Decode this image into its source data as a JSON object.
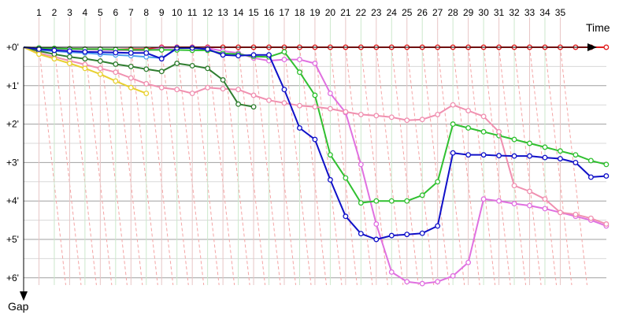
{
  "chart_data": {
    "type": "line",
    "x_axis_label": "Time",
    "y_axis_label": "Gap",
    "x_ticks": [
      "1",
      "2",
      "3",
      "4",
      "5",
      "6",
      "7",
      "8",
      "9",
      "10",
      "11",
      "12",
      "13",
      "14",
      "15",
      "16",
      "17",
      "18",
      "19",
      "20",
      "21",
      "22",
      "23",
      "24",
      "25",
      "26",
      "27",
      "28",
      "29",
      "30",
      "31",
      "32",
      "33",
      "34",
      "35"
    ],
    "y_ticks": [
      "+0'",
      "+1'",
      "+2'",
      "+3'",
      "+4'",
      "+5'",
      "+6'"
    ],
    "y_range_minutes": [
      0,
      6.4
    ],
    "x_range_laps": [
      0,
      38
    ],
    "grid": "on",
    "lap_line_colors": [
      "#e8c6c6",
      "#cce8cc"
    ],
    "series": [
      {
        "color": "#e02020",
        "x": [
          0,
          1,
          2,
          3,
          4,
          5,
          6,
          7,
          8,
          9,
          10,
          11,
          12,
          13,
          14,
          15,
          16,
          17,
          18,
          19,
          20,
          21,
          22,
          23,
          24,
          25,
          26,
          27,
          28,
          29,
          30,
          31,
          32,
          33,
          34,
          35,
          36,
          37,
          38
        ],
        "y": [
          0,
          0.02,
          0.04,
          0.04,
          0.05,
          0.05,
          0.06,
          0.05,
          0.05,
          0,
          0,
          0,
          0,
          0,
          0,
          0,
          0,
          0,
          0,
          0,
          0,
          0,
          0,
          0,
          0,
          0,
          0,
          0,
          0,
          0,
          0,
          0,
          0,
          0,
          0,
          0,
          0,
          0,
          0
        ]
      },
      {
        "color": "#e070e0",
        "x": [
          0,
          1,
          2,
          3,
          4,
          5,
          6,
          7,
          8,
          9,
          10,
          11,
          12,
          13,
          14,
          15,
          16,
          17,
          18,
          19,
          20,
          21,
          22,
          23,
          24,
          25,
          26,
          27,
          28,
          29,
          30,
          31,
          32,
          33,
          34,
          35,
          36,
          37,
          38
        ],
        "y": [
          0,
          0.02,
          0.04,
          0.05,
          0.06,
          0.07,
          0.08,
          0.08,
          0.09,
          0.02,
          0.01,
          0.01,
          0.02,
          0.1,
          0.15,
          0.28,
          0.35,
          0.32,
          0.32,
          0.42,
          1.2,
          1.7,
          3.05,
          4.6,
          5.85,
          6.1,
          6.15,
          6.1,
          5.95,
          5.6,
          3.95,
          4.0,
          4.07,
          4.12,
          4.2,
          4.3,
          4.4,
          4.5,
          4.65
        ]
      },
      {
        "color": "#50a0f0",
        "x": [
          0,
          1,
          2,
          3,
          4,
          5,
          6,
          7,
          8,
          9,
          10
        ],
        "y": [
          0,
          0.08,
          0.1,
          0.13,
          0.15,
          0.18,
          0.2,
          0.22,
          0.25,
          0.28,
          0.04
        ]
      },
      {
        "color": "#30c030",
        "x": [
          0,
          1,
          2,
          3,
          4,
          5,
          6,
          7,
          8,
          9,
          10,
          11,
          12,
          13,
          14,
          15,
          16,
          17,
          18,
          19,
          20,
          21,
          22,
          23,
          24,
          25,
          26,
          27,
          28,
          29,
          30,
          31,
          32,
          33,
          34,
          35,
          36,
          37,
          38
        ],
        "y": [
          0,
          0.02,
          0.03,
          0.04,
          0.05,
          0.05,
          0.06,
          0.07,
          0.07,
          0.07,
          0.07,
          0.08,
          0.08,
          0.16,
          0.18,
          0.24,
          0.25,
          0.12,
          0.65,
          1.25,
          2.8,
          3.4,
          4.05,
          4.0,
          4.0,
          4.0,
          3.85,
          3.5,
          2.0,
          2.1,
          2.2,
          2.3,
          2.4,
          2.5,
          2.6,
          2.7,
          2.8,
          2.95,
          3.05
        ]
      },
      {
        "color": "#f090b0",
        "x": [
          0,
          1,
          2,
          3,
          4,
          5,
          6,
          7,
          8,
          9,
          10,
          11,
          12,
          13,
          14,
          15,
          16,
          17,
          18,
          19,
          20,
          21,
          22,
          23,
          24,
          25,
          26,
          27,
          28,
          29,
          30,
          31,
          32,
          33,
          34,
          35,
          36,
          37,
          38
        ],
        "y": [
          0,
          0.15,
          0.25,
          0.35,
          0.45,
          0.55,
          0.65,
          0.8,
          0.95,
          1.05,
          1.1,
          1.2,
          1.05,
          1.08,
          1.1,
          1.25,
          1.38,
          1.45,
          1.52,
          1.55,
          1.6,
          1.68,
          1.75,
          1.78,
          1.82,
          1.9,
          1.88,
          1.75,
          1.5,
          1.65,
          1.8,
          2.2,
          3.6,
          3.75,
          3.95,
          4.3,
          4.35,
          4.45,
          4.6
        ]
      },
      {
        "color": "#2f7d2f",
        "x": [
          0,
          1,
          2,
          3,
          4,
          5,
          6,
          7,
          8,
          9,
          10,
          11,
          12,
          13,
          14,
          15
        ],
        "y": [
          0,
          0.1,
          0.18,
          0.25,
          0.3,
          0.36,
          0.44,
          0.5,
          0.57,
          0.63,
          0.42,
          0.48,
          0.55,
          0.85,
          1.48,
          1.55
        ]
      },
      {
        "color": "#e8d030",
        "x": [
          0,
          1,
          2,
          3,
          4,
          5,
          6,
          7,
          8
        ],
        "y": [
          0,
          0.18,
          0.3,
          0.42,
          0.55,
          0.7,
          0.88,
          1.05,
          1.2
        ]
      },
      {
        "color": "#1010c8",
        "x": [
          0,
          1,
          2,
          3,
          4,
          5,
          6,
          7,
          8,
          9,
          10,
          11,
          12,
          13,
          14,
          15,
          16,
          17,
          18,
          19,
          20,
          21,
          22,
          23,
          24,
          25,
          26,
          27,
          28,
          29,
          30,
          31,
          32,
          33,
          34,
          35,
          36,
          37,
          38
        ],
        "y": [
          0,
          0.05,
          0.08,
          0.1,
          0.12,
          0.13,
          0.14,
          0.15,
          0.15,
          0.3,
          0.02,
          0.02,
          0.05,
          0.2,
          0.22,
          0.2,
          0.2,
          1.1,
          2.1,
          2.4,
          3.45,
          4.4,
          4.85,
          5.0,
          4.9,
          4.87,
          4.84,
          4.65,
          2.75,
          2.8,
          2.8,
          2.82,
          2.83,
          2.83,
          2.87,
          2.9,
          3.0,
          3.38,
          3.35
        ]
      }
    ]
  }
}
